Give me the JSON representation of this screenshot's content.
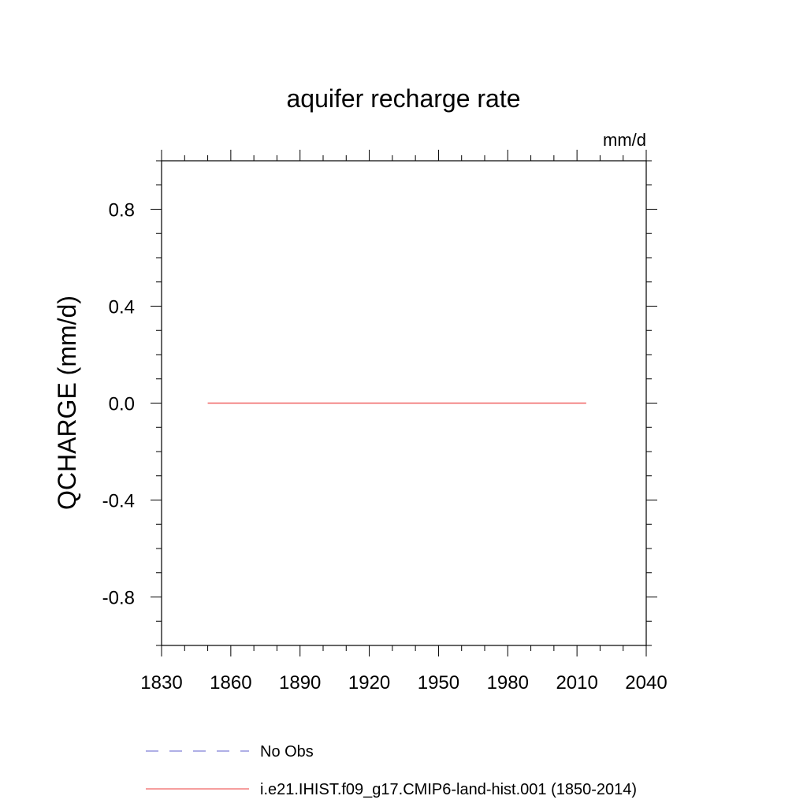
{
  "chart_data": {
    "type": "line",
    "title": "aquifer recharge rate",
    "units": "mm/d",
    "ylabel": "QCHARGE  (mm/d)",
    "xlabel": "",
    "xlim": [
      1830,
      2040
    ],
    "ylim": [
      -1.0,
      1.0
    ],
    "x_ticks": [
      1830,
      1860,
      1890,
      1920,
      1950,
      1980,
      2010,
      2040
    ],
    "x_minor_step": 10,
    "y_ticks": [
      -0.8,
      -0.4,
      0.0,
      0.4,
      0.8
    ],
    "y_tick_labels": [
      "-0.8",
      "-0.4",
      "0.0",
      "0.4",
      "0.8"
    ],
    "y_minor_step": 0.1,
    "grid": false,
    "legend_position": "bottom-left",
    "series": [
      {
        "name": "No Obs",
        "color": "#7f7fd8",
        "style": "dashed",
        "x": [],
        "y": []
      },
      {
        "name": "i.e21.IHIST.f09_g17.CMIP6-land-hist.001 (1850-2014)",
        "color": "#f06464",
        "style": "solid",
        "x": [
          1850,
          2014
        ],
        "y": [
          0.0,
          0.0
        ]
      }
    ]
  }
}
